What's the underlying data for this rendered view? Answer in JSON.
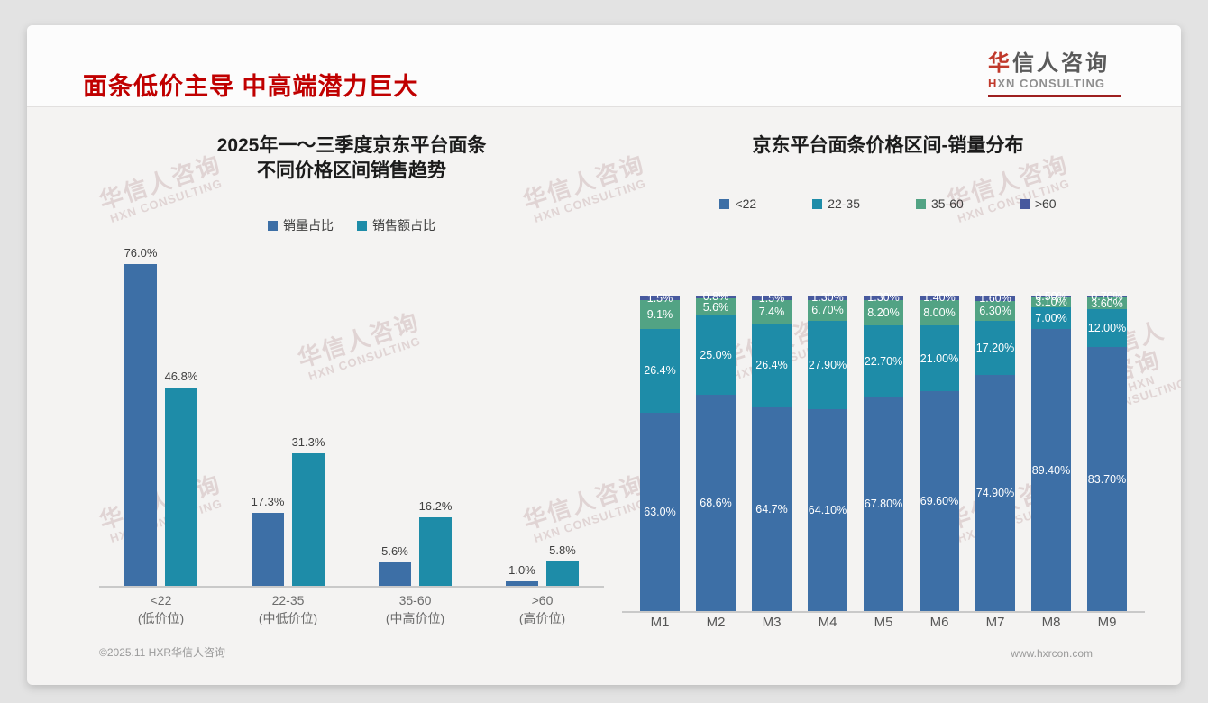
{
  "page": {
    "title": "面条低价主导 中高端潜力巨大"
  },
  "logo": {
    "cn_first": "华",
    "cn_rest": "信人咨询",
    "en_first": "H",
    "en_rest": "XN CONSULTING"
  },
  "watermark": {
    "line1": "华信人咨询",
    "line2": "HXN CONSULTING"
  },
  "footer": {
    "left": "©2025.11 HXR华信人咨询",
    "right": "www.hxrcon.com"
  },
  "colors": {
    "title_red": "#c00000",
    "blue": "#3d6fa6",
    "teal": "#1e8ca8",
    "green": "#52a384",
    "indigo": "#47599e"
  },
  "chart_data": [
    {
      "type": "bar",
      "title_line1": "2025年一～三季度京东平台面条",
      "title_line2": "不同价格区间销售趋势",
      "categories": [
        "<22",
        "22-35",
        "35-60",
        ">60"
      ],
      "category_subs": [
        "(低价位)",
        "(中低价位)",
        "(中高价位)",
        "(高价位)"
      ],
      "series": [
        {
          "name": "销量占比",
          "color_key": "blue",
          "values": [
            76.0,
            17.3,
            5.6,
            1.0
          ],
          "labels": [
            "76.0%",
            "17.3%",
            "5.6%",
            "1.0%"
          ]
        },
        {
          "name": "销售额占比",
          "color_key": "teal",
          "values": [
            46.8,
            31.3,
            16.2,
            5.8
          ],
          "labels": [
            "46.8%",
            "31.3%",
            "16.2%",
            "5.8%"
          ]
        }
      ],
      "ylim": [
        0,
        80
      ],
      "grid": false,
      "legend_position": "top"
    },
    {
      "type": "stacked-bar",
      "title": "京东平台面条价格区间-销量分布",
      "categories": [
        "M1",
        "M2",
        "M3",
        "M4",
        "M5",
        "M6",
        "M7",
        "M8",
        "M9"
      ],
      "series": [
        {
          "name": "<22",
          "color_key": "blue",
          "values": [
            63.0,
            68.6,
            64.7,
            64.1,
            67.8,
            69.6,
            74.9,
            89.4,
            83.7
          ],
          "labels": [
            "63.0%",
            "68.6%",
            "64.7%",
            "64.10%",
            "67.80%",
            "69.60%",
            "74.90%",
            "89.40%",
            "83.70%"
          ]
        },
        {
          "name": "22-35",
          "color_key": "teal",
          "values": [
            26.4,
            25.0,
            26.4,
            27.9,
            22.7,
            21.0,
            17.2,
            7.0,
            12.0
          ],
          "labels": [
            "26.4%",
            "25.0%",
            "26.4%",
            "27.90%",
            "22.70%",
            "21.00%",
            "17.20%",
            "7.00%",
            "12.00%"
          ]
        },
        {
          "name": "35-60",
          "color_key": "green",
          "values": [
            9.1,
            5.6,
            7.4,
            6.7,
            8.2,
            8.0,
            6.3,
            3.1,
            3.6
          ],
          "labels": [
            "9.1%",
            "5.6%",
            "7.4%",
            "6.70%",
            "8.20%",
            "8.00%",
            "6.30%",
            "3.10%",
            "3.60%"
          ]
        },
        {
          "name": ">60",
          "color_key": "indigo",
          "values": [
            1.5,
            0.8,
            1.5,
            1.3,
            1.3,
            1.4,
            1.6,
            0.5,
            0.7
          ],
          "labels": [
            "1.5%",
            "0.8%",
            "1.5%",
            "1.30%",
            "1.30%",
            "1.40%",
            "1.60%",
            "0.50%",
            "0.70%"
          ]
        }
      ],
      "ylim": [
        0,
        100
      ],
      "grid": false,
      "legend_position": "top"
    }
  ]
}
